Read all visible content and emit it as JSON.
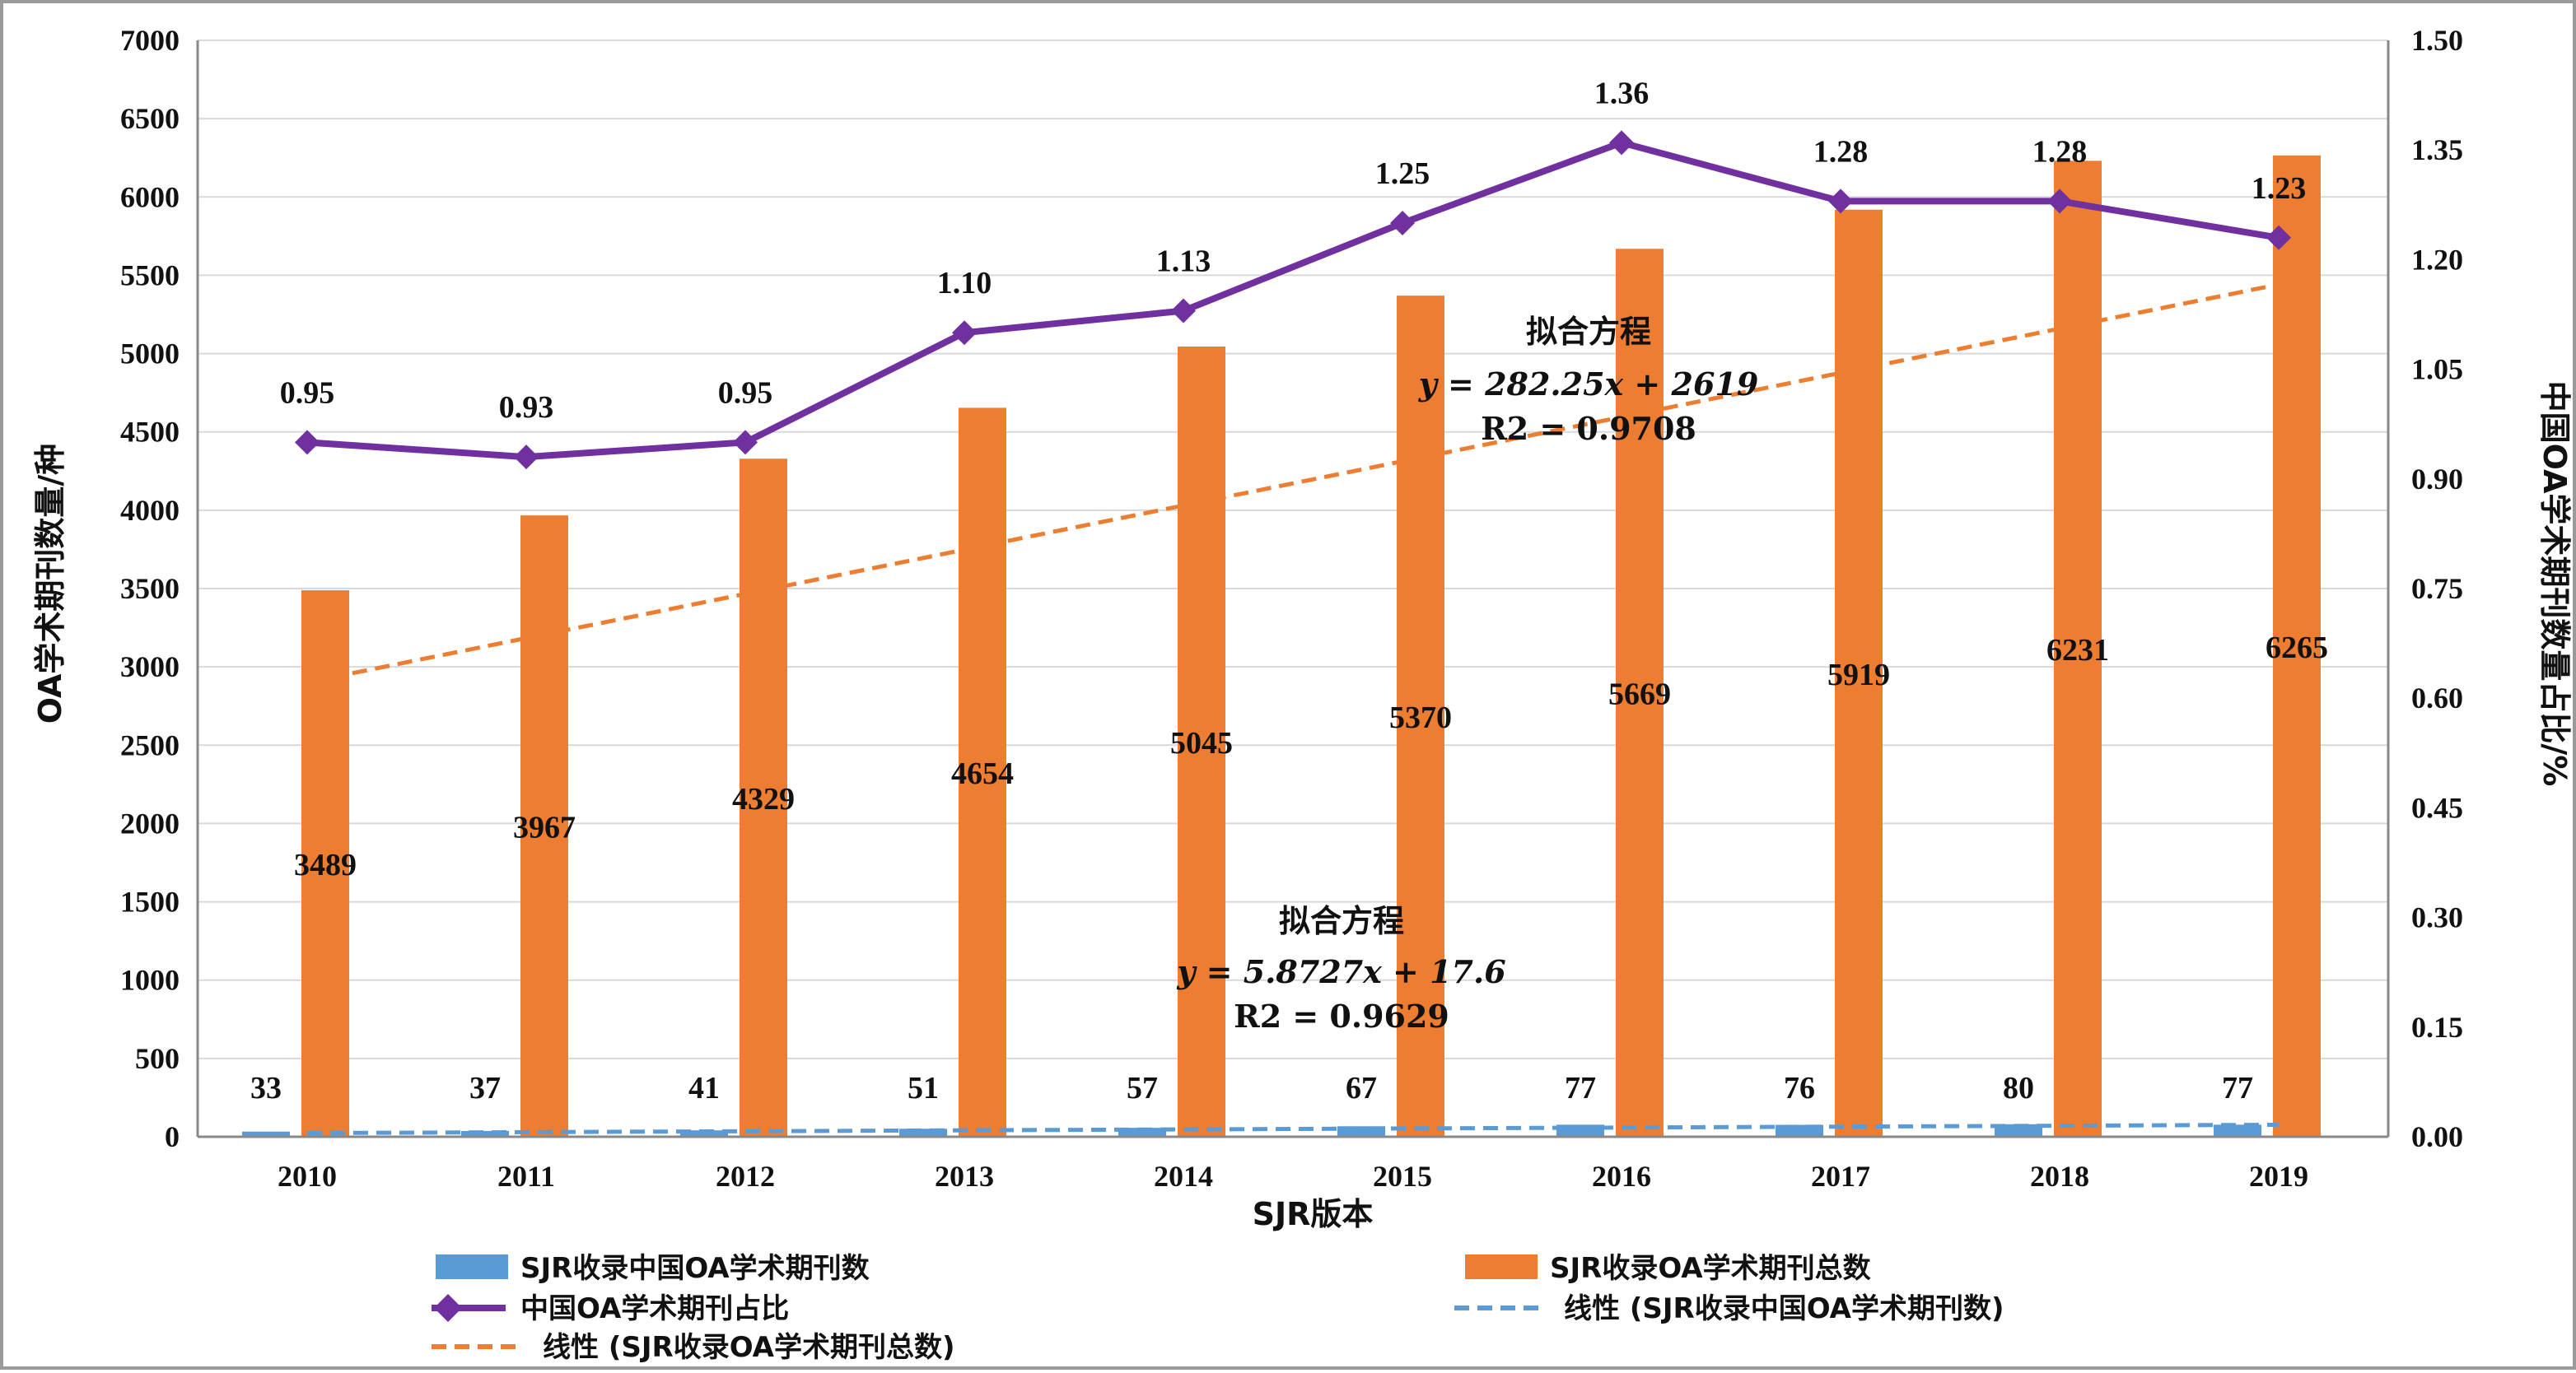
{
  "chart_data": {
    "type": "bar",
    "categories": [
      "2010",
      "2011",
      "2012",
      "2013",
      "2014",
      "2015",
      "2016",
      "2017",
      "2018",
      "2019"
    ],
    "xlabel": "SJR版本",
    "ylabel_left": "OA学术期刊数量/种",
    "ylabel_right": "中国OA学术期刊数量占比/%",
    "ylim_left": [
      0,
      7000
    ],
    "yticks_left": [
      "0",
      "500",
      "1000",
      "1500",
      "2000",
      "2500",
      "3000",
      "3500",
      "4000",
      "4500",
      "5000",
      "5500",
      "6000",
      "6500",
      "7000"
    ],
    "ylim_right": [
      0,
      1.5
    ],
    "yticks_right": [
      "0.00",
      "0.15",
      "0.30",
      "0.45",
      "0.60",
      "0.75",
      "0.90",
      "1.05",
      "1.20",
      "1.35",
      "1.50"
    ],
    "grid": "horizontal",
    "legend_position": "bottom",
    "series": [
      {
        "name": "SJR收录中国OA学术期刊数",
        "kind": "bar",
        "axis": "left",
        "color": "#5b9bd5",
        "values": [
          33,
          37,
          41,
          51,
          57,
          67,
          77,
          76,
          80,
          77
        ],
        "labels": [
          "33",
          "37",
          "41",
          "51",
          "57",
          "67",
          "77",
          "76",
          "80",
          "77"
        ]
      },
      {
        "name": "SJR收录OA学术期刊总数",
        "kind": "bar",
        "axis": "left",
        "color": "#ed7d31",
        "values": [
          3489,
          3967,
          4329,
          4654,
          5045,
          5370,
          5669,
          5919,
          6231,
          6265
        ],
        "labels": [
          "3489",
          "3967",
          "4329",
          "4654",
          "5045",
          "5370",
          "5669",
          "5919",
          "6231",
          "6265"
        ]
      },
      {
        "name": "中国OA学术期刊占比",
        "kind": "line",
        "axis": "right",
        "color": "#7030a0",
        "values": [
          0.95,
          0.93,
          0.95,
          1.1,
          1.13,
          1.25,
          1.36,
          1.28,
          1.28,
          1.23
        ],
        "labels": [
          "0.95",
          "0.93",
          "0.95",
          "1.10",
          "1.13",
          "1.25",
          "1.36",
          "1.28",
          "1.28",
          "1.23"
        ]
      },
      {
        "name": "线性 (SJR收录中国OA学术期刊数)",
        "kind": "trendline",
        "axis": "left",
        "color": "#5b9bd5",
        "slope": 5.8727,
        "intercept": 17.6
      },
      {
        "name": "线性 (SJR收录OA学术期刊总数)",
        "kind": "trendline",
        "axis": "left",
        "color": "#ed7d31",
        "slope": 282.25,
        "intercept": 2619
      }
    ],
    "annotations": [
      {
        "title": "拟合方程",
        "equation": "y = 282.25x + 2619",
        "r2": "R2 = 0.9708"
      },
      {
        "title": "拟合方程",
        "equation": "y = 5.8727x + 17.6",
        "r2": "R2 = 0.9629"
      }
    ]
  }
}
